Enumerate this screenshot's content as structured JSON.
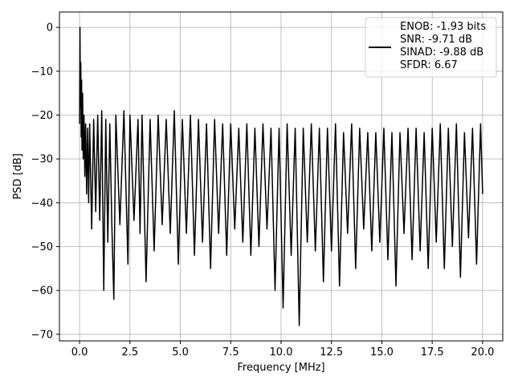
{
  "chart_data": {
    "type": "line",
    "title": "",
    "xlabel": "Frequency [MHz]",
    "ylabel": "PSD [dB]",
    "xlim": [
      -1.0,
      21.0
    ],
    "ylim": [
      -71.5,
      3.5
    ],
    "x_ticks": [
      0.0,
      2.5,
      5.0,
      7.5,
      10.0,
      12.5,
      15.0,
      17.5,
      20.0
    ],
    "x_tick_labels": [
      "0.0",
      "2.5",
      "5.0",
      "7.5",
      "10.0",
      "12.5",
      "15.0",
      "17.5",
      "20.0"
    ],
    "y_ticks": [
      0,
      -10,
      -20,
      -30,
      -40,
      -50,
      -60,
      -70
    ],
    "y_tick_labels": [
      "0",
      "−10",
      "−20",
      "−30",
      "−40",
      "−50",
      "−60",
      "−70"
    ],
    "grid": true,
    "legend_position": "top-right",
    "line_color": "#000000",
    "legend_lines": [
      "ENOB: -1.93 bits",
      "SNR: -9.71 dB",
      "SINAD: -9.88 dB",
      "SFDR: 6.67"
    ],
    "series": [
      {
        "x": [
          0.0,
          0.02,
          0.04,
          0.06,
          0.08,
          0.1,
          0.12,
          0.15,
          0.18,
          0.22,
          0.26,
          0.3,
          0.35,
          0.4,
          0.45,
          0.5,
          0.6,
          0.7,
          0.8,
          0.9,
          1.0,
          1.1,
          1.2,
          1.3,
          1.4,
          1.5,
          1.6,
          1.7,
          1.8,
          2.0,
          2.2,
          2.4,
          2.5,
          2.7,
          2.9,
          3.0,
          3.1,
          3.3,
          3.5,
          3.7,
          3.9,
          4.1,
          4.3,
          4.5,
          4.7,
          4.9,
          5.1,
          5.3,
          5.5,
          5.7,
          5.9,
          6.1,
          6.3,
          6.5,
          6.7,
          6.9,
          7.1,
          7.3,
          7.5,
          7.7,
          7.9,
          8.1,
          8.3,
          8.5,
          8.7,
          8.9,
          9.1,
          9.3,
          9.5,
          9.7,
          9.9,
          10.1,
          10.3,
          10.5,
          10.7,
          10.9,
          11.1,
          11.3,
          11.5,
          11.7,
          11.9,
          12.1,
          12.3,
          12.5,
          12.7,
          12.9,
          13.1,
          13.3,
          13.5,
          13.7,
          13.9,
          14.1,
          14.3,
          14.5,
          14.7,
          14.9,
          15.1,
          15.3,
          15.5,
          15.7,
          15.9,
          16.1,
          16.3,
          16.5,
          16.7,
          16.9,
          17.1,
          17.3,
          17.5,
          17.7,
          17.9,
          18.1,
          18.3,
          18.5,
          18.7,
          18.9,
          19.1,
          19.3,
          19.5,
          19.7,
          19.9,
          20.0
        ],
        "y": [
          -22.0,
          0.0,
          -18.0,
          -8.0,
          -25.0,
          -12.0,
          -28.0,
          -15.0,
          -30.0,
          -20.0,
          -34.0,
          -22.0,
          -38.0,
          -23.0,
          -40.0,
          -22.0,
          -46.0,
          -21.0,
          -42.0,
          -20.0,
          -44.0,
          -19.0,
          -60.0,
          -21.0,
          -49.0,
          -22.0,
          -45.0,
          -62.0,
          -20.0,
          -45.0,
          -19.0,
          -54.0,
          -20.0,
          -44.0,
          -21.0,
          -47.0,
          -20.0,
          -58.0,
          -21.0,
          -51.0,
          -20.0,
          -45.0,
          -21.0,
          -47.0,
          -19.0,
          -54.0,
          -21.0,
          -47.0,
          -20.0,
          -52.0,
          -21.0,
          -49.0,
          -22.0,
          -55.0,
          -21.0,
          -47.0,
          -22.0,
          -52.0,
          -22.0,
          -46.0,
          -23.0,
          -49.0,
          -22.0,
          -52.0,
          -23.0,
          -50.0,
          -22.0,
          -46.0,
          -23.0,
          -60.0,
          -23.0,
          -64.0,
          -22.0,
          -52.0,
          -23.0,
          -68.0,
          -23.0,
          -49.0,
          -22.0,
          -51.0,
          -23.0,
          -58.0,
          -23.0,
          -51.0,
          -22.0,
          -59.0,
          -24.0,
          -47.0,
          -22.0,
          -55.0,
          -23.0,
          -46.0,
          -24.0,
          -51.0,
          -24.0,
          -49.0,
          -23.0,
          -53.0,
          -24.0,
          -59.0,
          -24.0,
          -47.0,
          -23.0,
          -53.0,
          -23.0,
          -51.0,
          -24.0,
          -55.0,
          -23.0,
          -49.0,
          -22.0,
          -55.0,
          -23.0,
          -50.0,
          -22.0,
          -57.0,
          -24.0,
          -48.0,
          -23.0,
          -54.0,
          -22.0,
          -38.0
        ]
      }
    ]
  }
}
